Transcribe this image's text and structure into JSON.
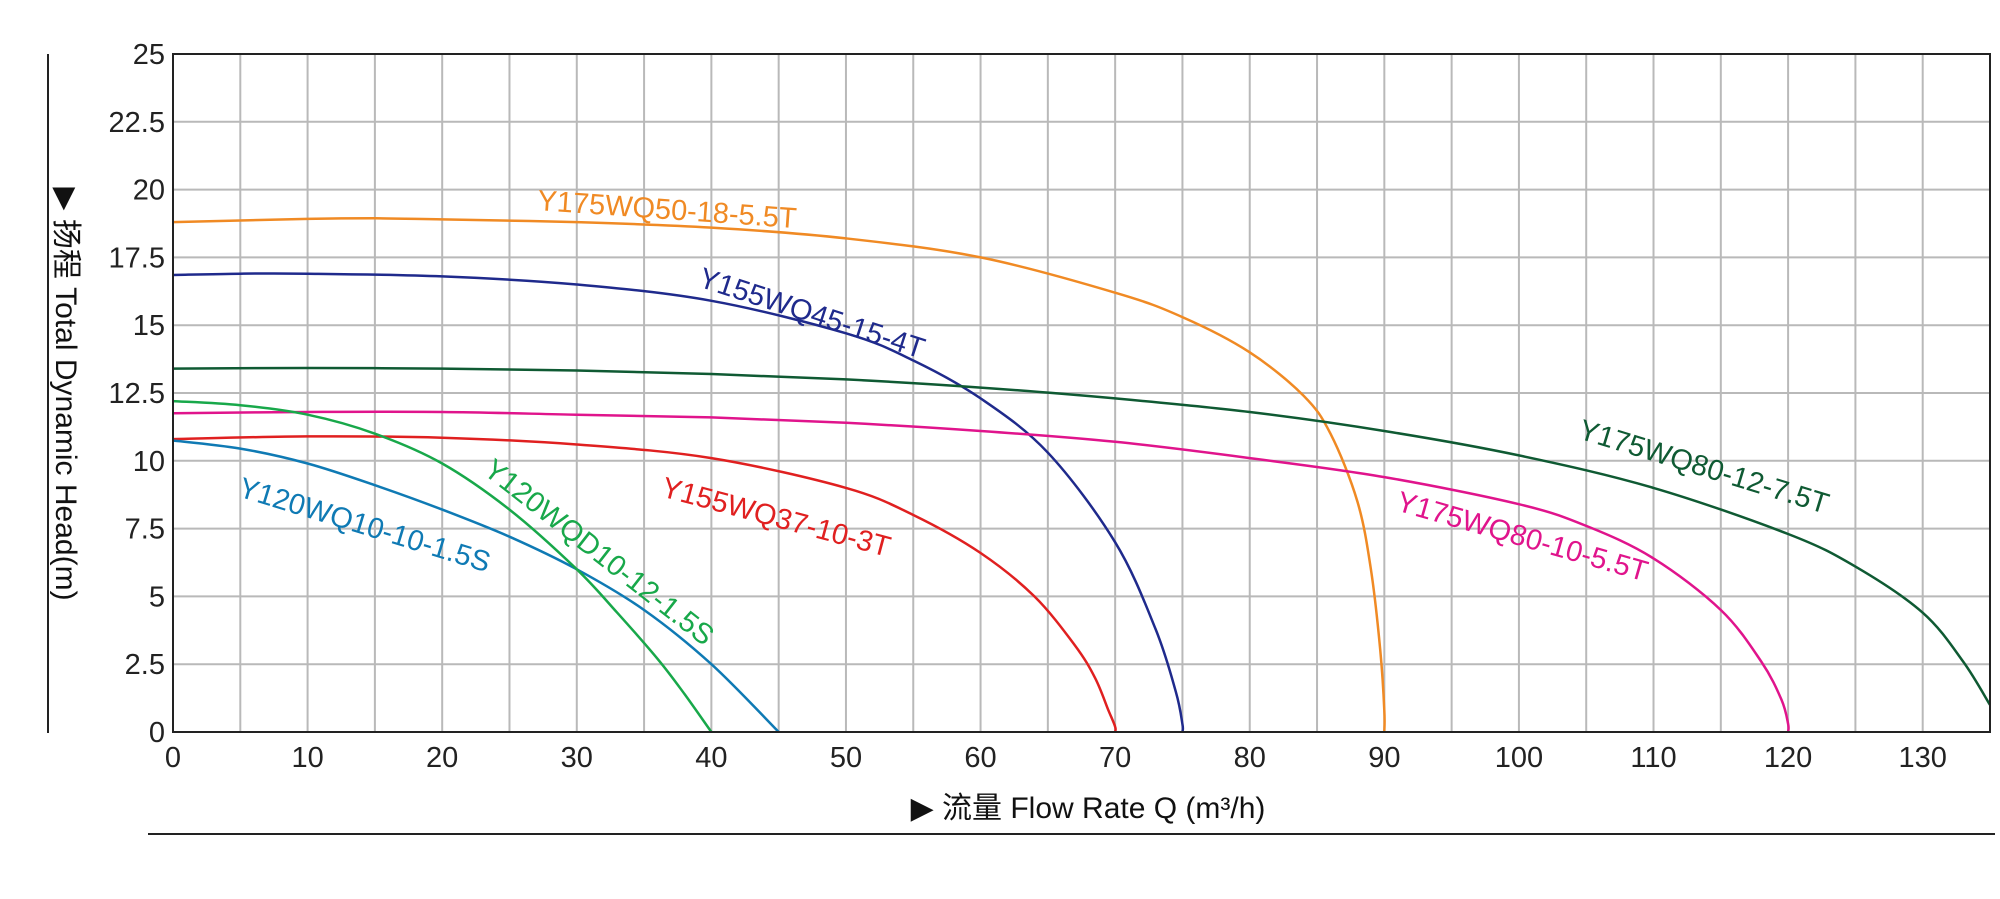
{
  "chart_data": {
    "type": "line",
    "xlabel": "▶ 流量 Flow Rate Q (m³/h)",
    "ylabel": "▶ 扬程 Total Dynamic Head(m)",
    "xlim": [
      0,
      135
    ],
    "ylim": [
      0,
      25
    ],
    "x_ticks": [
      "0",
      "10",
      "20",
      "30",
      "40",
      "50",
      "60",
      "70",
      "80",
      "90",
      "100",
      "110",
      "120",
      "130"
    ],
    "y_ticks": [
      "0",
      "2.5",
      "5",
      "7.5",
      "10",
      "12.5",
      "15",
      "17.5",
      "20",
      "22.5",
      "25"
    ],
    "grid": true,
    "series": [
      {
        "name": "Y175WQ50-18-5.5T",
        "color": "#f08a24",
        "x": [
          0,
          10,
          15,
          20,
          30,
          40,
          50,
          60,
          70,
          75,
          80,
          84,
          86,
          88,
          89,
          89.7,
          90,
          90
        ],
        "y": [
          18.8,
          18.92,
          18.94,
          18.9,
          18.8,
          18.6,
          18.2,
          17.5,
          16.2,
          15.3,
          14.0,
          12.4,
          11.0,
          8.5,
          6.0,
          3.0,
          0.8,
          0
        ]
      },
      {
        "name": "Y155WQ45-15-4T",
        "color": "#1f2a8c",
        "x": [
          0,
          5,
          10,
          20,
          30,
          40,
          50,
          55,
          60,
          65,
          70,
          73,
          74.5,
          75,
          75
        ],
        "y": [
          16.85,
          16.9,
          16.9,
          16.8,
          16.5,
          15.9,
          14.7,
          13.7,
          12.3,
          10.3,
          7.0,
          3.8,
          1.5,
          0.3,
          0
        ]
      },
      {
        "name": "Y175WQ80-12-7.5T",
        "color": "#0f5a33",
        "x": [
          0,
          10,
          20,
          30,
          40,
          50,
          60,
          70,
          80,
          90,
          100,
          110,
          120,
          125,
          130,
          133,
          135
        ],
        "y": [
          13.4,
          13.42,
          13.4,
          13.33,
          13.2,
          13.0,
          12.7,
          12.3,
          11.8,
          11.1,
          10.2,
          9.0,
          7.3,
          6.1,
          4.4,
          2.6,
          1.0
        ]
      },
      {
        "name": "Y175WQ80-10-5.5T",
        "color": "#e0148c",
        "x": [
          0,
          10,
          20,
          30,
          40,
          50,
          60,
          70,
          80,
          90,
          100,
          105,
          110,
          115,
          118,
          119.5,
          120,
          120
        ],
        "y": [
          11.75,
          11.8,
          11.8,
          11.7,
          11.6,
          11.4,
          11.1,
          10.7,
          10.1,
          9.4,
          8.4,
          7.6,
          6.4,
          4.5,
          2.6,
          1.2,
          0.3,
          0
        ]
      },
      {
        "name": "Y155WQ37-10-3T",
        "color": "#e02020",
        "x": [
          0,
          10,
          20,
          30,
          40,
          50,
          55,
          60,
          64,
          67,
          68.5,
          69.5,
          70,
          70
        ],
        "y": [
          10.8,
          10.9,
          10.85,
          10.6,
          10.1,
          9.0,
          8.0,
          6.6,
          5.0,
          3.2,
          2.0,
          0.8,
          0.2,
          0
        ]
      },
      {
        "name": "Y120WQ10-10-1.5S",
        "color": "#0f7ab4",
        "x": [
          0,
          5,
          10,
          15,
          20,
          25,
          30,
          35,
          40,
          45
        ],
        "y": [
          10.75,
          10.45,
          9.9,
          9.1,
          8.2,
          7.2,
          6.0,
          4.5,
          2.5,
          0
        ]
      },
      {
        "name": "Y120WQD10-12-1.5S",
        "color": "#18a84a",
        "x": [
          0,
          5,
          10,
          15,
          20,
          25,
          30,
          33,
          36,
          38,
          40
        ],
        "y": [
          12.2,
          12.05,
          11.7,
          11.0,
          9.9,
          8.2,
          6.0,
          4.4,
          2.7,
          1.4,
          0
        ]
      }
    ],
    "annotations": [
      {
        "text": "Y175WQ50-18-5.5T",
        "series": 0
      },
      {
        "text": "Y155WQ45-15-4T",
        "series": 1
      },
      {
        "text": "Y175WQ80-12-7.5T",
        "series": 2
      },
      {
        "text": "Y175WQ80-10-5.5T",
        "series": 3
      },
      {
        "text": "Y155WQ37-10-3T",
        "series": 4
      },
      {
        "text": "Y120WQ10-10-1.5S",
        "series": 5
      },
      {
        "text": "Y120WQD10-12-1.5S",
        "series": 6
      }
    ]
  }
}
